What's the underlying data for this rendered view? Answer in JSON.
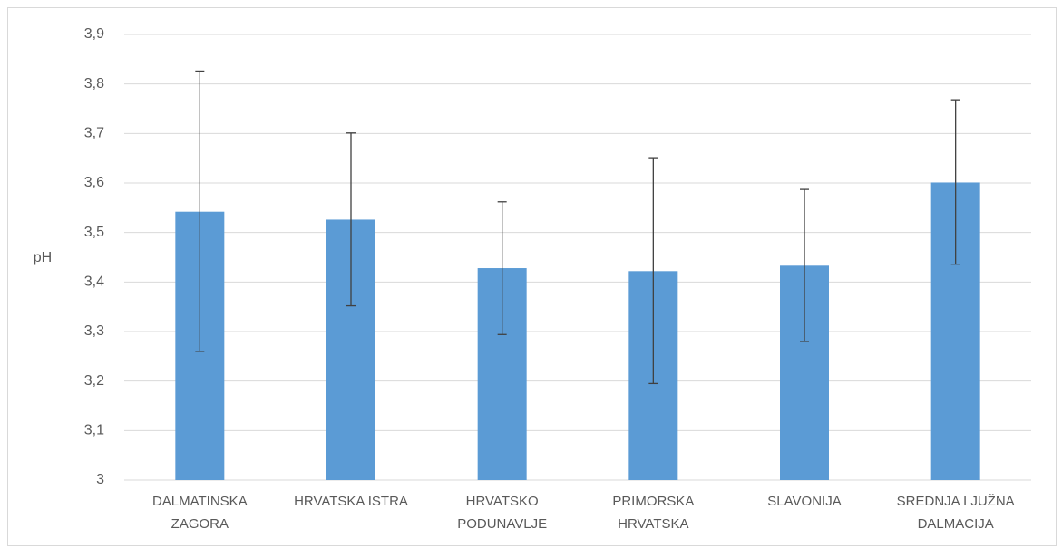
{
  "chart_data": {
    "type": "bar",
    "title": "",
    "xlabel": "",
    "ylabel": "pH",
    "ylim": [
      3,
      3.9
    ],
    "yticks": [
      "3",
      "3,1",
      "3,2",
      "3,3",
      "3,4",
      "3,5",
      "3,6",
      "3,7",
      "3,8",
      "3,9"
    ],
    "grid": true,
    "legend": "none",
    "categories": [
      [
        "DALMATINSKA",
        "ZAGORA"
      ],
      [
        "HRVATSKA ISTRA"
      ],
      [
        "HRVATSKO",
        "PODUNAVLJE"
      ],
      [
        "PRIMORSKA",
        "HRVATSKA"
      ],
      [
        "SLAVONIJA"
      ],
      [
        "SREDNJA I JUŽNA",
        "DALMACIJA"
      ]
    ],
    "values": [
      3.542,
      3.526,
      3.428,
      3.422,
      3.433,
      3.601
    ],
    "error_low": [
      3.26,
      3.352,
      3.294,
      3.195,
      3.28,
      3.436
    ],
    "error_high": [
      3.826,
      3.701,
      3.562,
      3.651,
      3.587,
      3.768
    ],
    "bar_color": "#5b9bd5",
    "error_color": "#404040",
    "grid_color": "#d9d9d9",
    "text_color": "#595959"
  }
}
